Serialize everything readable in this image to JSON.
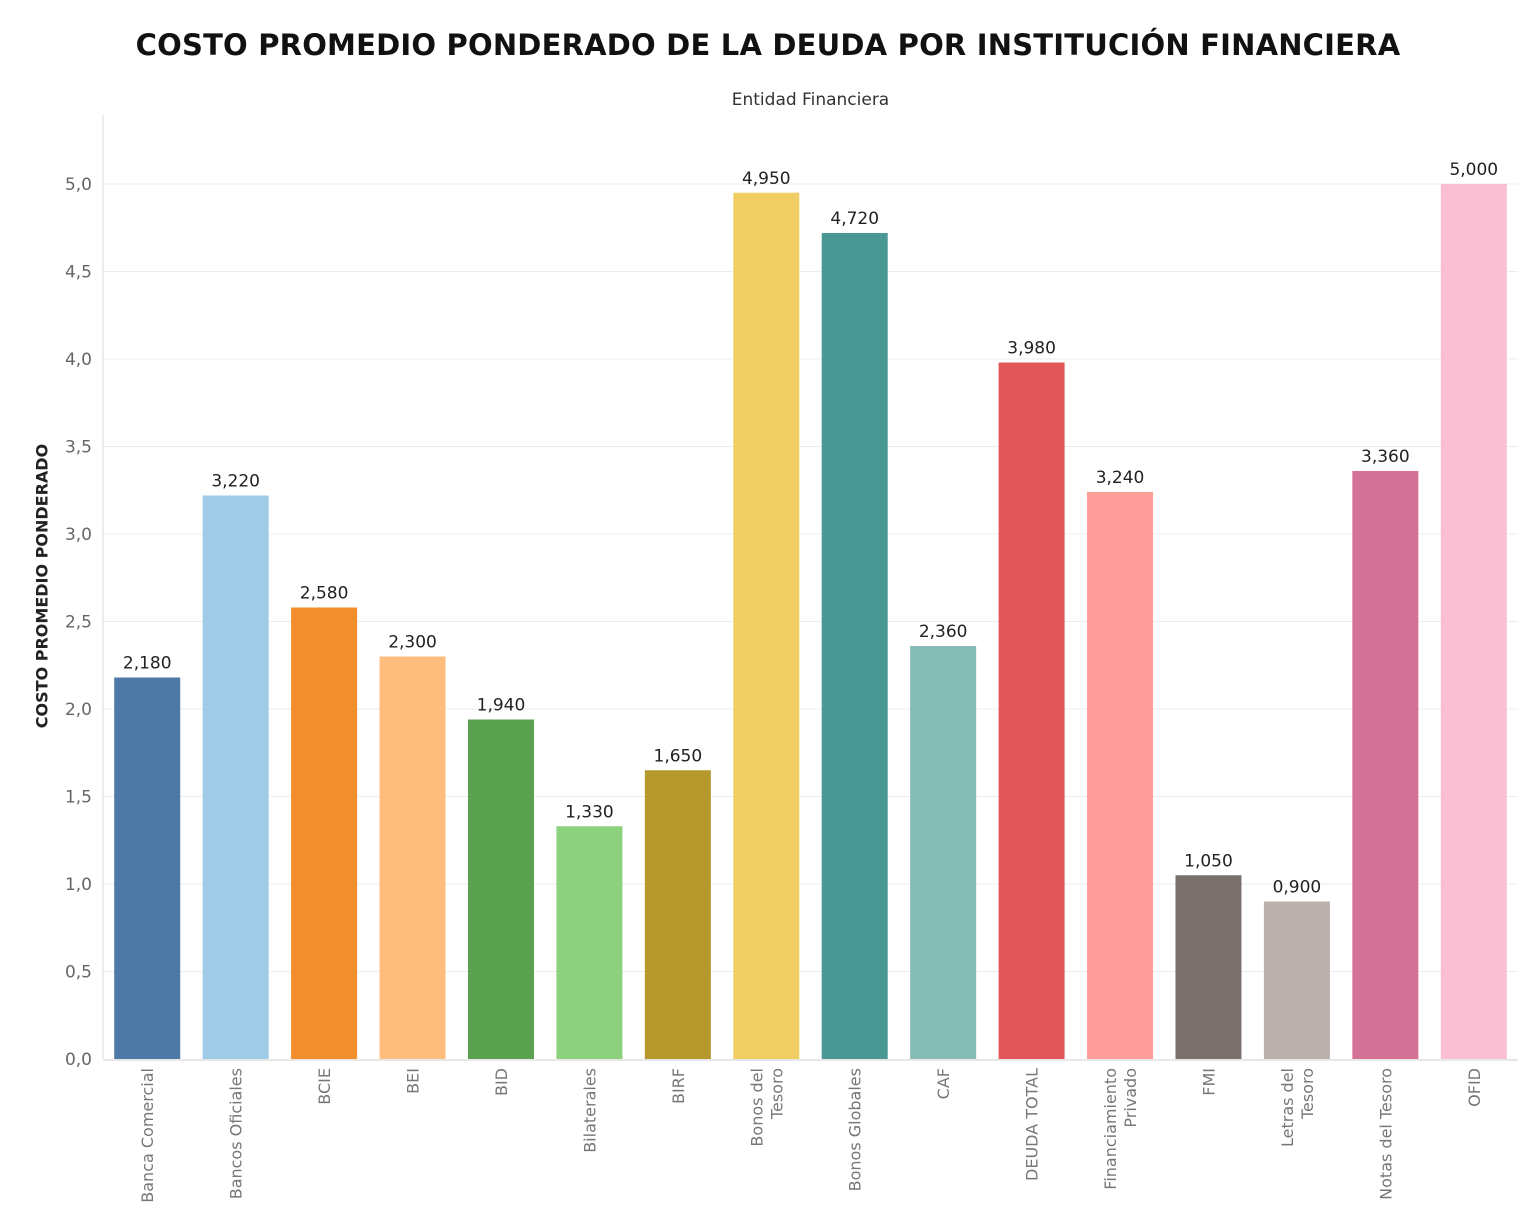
{
  "chart_data": {
    "type": "bar",
    "title": "COSTO PROMEDIO PONDERADO DE LA DEUDA POR INSTITUCIÓN FINANCIERA",
    "subtitle": "Entidad Financiera",
    "xlabel": "",
    "ylabel": "COSTO PROMEDIO PONDERADO",
    "ylim": [
      0,
      5.4
    ],
    "yticks": [
      "0,0",
      "0,5",
      "1,0",
      "1,5",
      "2,0",
      "2,5",
      "3,0",
      "3,5",
      "4,0",
      "4,5",
      "5,0"
    ],
    "grid": true,
    "categories": [
      [
        "Banca Comercial"
      ],
      [
        "Bancos Oficiales"
      ],
      [
        "BCIE"
      ],
      [
        "BEI"
      ],
      [
        "BID"
      ],
      [
        "Bilaterales"
      ],
      [
        "BIRF"
      ],
      [
        "Bonos del",
        "Tesoro"
      ],
      [
        "Bonos Globales"
      ],
      [
        "CAF"
      ],
      [
        "DEUDA TOTAL"
      ],
      [
        "Financiamiento",
        "Privado"
      ],
      [
        "FMI"
      ],
      [
        "Letras del",
        "Tesoro"
      ],
      [
        "Notas del Tesoro"
      ],
      [
        "OFID"
      ]
    ],
    "values": [
      2.18,
      3.22,
      2.58,
      2.3,
      1.94,
      1.33,
      1.65,
      4.95,
      4.72,
      2.36,
      3.98,
      3.24,
      1.05,
      0.9,
      3.36,
      5.0
    ],
    "value_labels": [
      "2,180",
      "3,220",
      "2,580",
      "2,300",
      "1,940",
      "1,330",
      "1,650",
      "4,950",
      "4,720",
      "2,360",
      "3,980",
      "3,240",
      "1,050",
      "0,900",
      "3,360",
      "5,000"
    ],
    "colors": [
      "#4e79a7",
      "#a0cbe8",
      "#f28e2b",
      "#ffbe7d",
      "#59a14f",
      "#8cd17d",
      "#b6992d",
      "#f1ce63",
      "#499894",
      "#86bcb6",
      "#e15759",
      "#ff9d9a",
      "#79706e",
      "#bab0ac",
      "#d37295",
      "#fabfd2"
    ]
  }
}
